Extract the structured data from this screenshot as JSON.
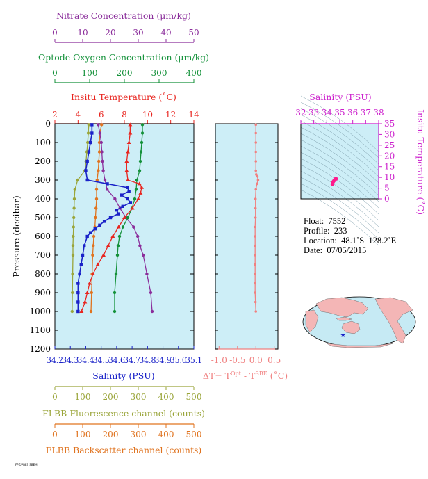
{
  "colors": {
    "nitrate": "#8b2e9b",
    "oxygen": "#14913a",
    "temperature": "#e8251f",
    "salinity": "#1a22c8",
    "fluorescence": "#9aa53a",
    "backscatter": "#e0731f",
    "dT": "#f08080",
    "panel_bg": "#cdeef7",
    "ts_axis": "#cc1fcc",
    "ts_point": "#ff1a8c"
  },
  "chart_data": [
    {
      "type": "line",
      "id": "profiles",
      "ylabel": "Pressure (decibar)",
      "ylim": [
        1200,
        0
      ],
      "yticks": [
        0,
        100,
        200,
        300,
        400,
        500,
        600,
        700,
        800,
        900,
        1000,
        1100,
        1200
      ],
      "axes": {
        "nitrate": {
          "label": "Nitrate Concentration (μm/kg)",
          "lim": [
            0,
            50
          ],
          "ticks": [
            0,
            10,
            20,
            30,
            40,
            50
          ]
        },
        "oxygen": {
          "label": "Optode Oxygen Concentration (μm/kg)",
          "lim": [
            0,
            400
          ],
          "ticks": [
            0,
            100,
            200,
            300,
            400
          ]
        },
        "temperature": {
          "label": "Insitu Temperature (˚C)",
          "lim": [
            2,
            14
          ],
          "ticks": [
            2,
            4,
            6,
            8,
            10,
            12,
            14
          ]
        },
        "salinity": {
          "label": "Salinity (PSU)",
          "lim": [
            34.2,
            35.1
          ],
          "ticks": [
            "34.2",
            "34.3",
            "34.4",
            "34.5",
            "34.6",
            "34.7",
            "34.8",
            "34.9",
            "35.0",
            "35.1"
          ]
        },
        "fluorescence": {
          "label": "FLBB Fluorescence channel (counts)",
          "lim": [
            0,
            500
          ],
          "ticks": [
            0,
            100,
            200,
            300,
            400,
            500
          ]
        },
        "backscatter": {
          "label": "FLBB Backscatter channel (counts)",
          "lim": [
            0,
            500
          ],
          "ticks": [
            0,
            100,
            200,
            300,
            400,
            500
          ]
        }
      },
      "series": [
        {
          "key": "nitrate",
          "axis": "nitrate",
          "marker": "circle",
          "p": [
            5,
            50,
            100,
            150,
            200,
            250,
            300,
            350,
            400,
            450,
            500,
            550,
            600,
            650,
            700,
            800,
            900,
            1000
          ],
          "v": [
            15.6,
            16.2,
            16.7,
            16.9,
            17.1,
            17.4,
            18.0,
            18.8,
            21.6,
            23.4,
            25.6,
            28.3,
            29.8,
            30.6,
            31.8,
            33.1,
            34.5,
            35.0
          ]
        },
        {
          "key": "oxygen",
          "axis": "oxygen",
          "marker": "circle",
          "p": [
            5,
            50,
            100,
            150,
            200,
            250,
            300,
            350,
            400,
            450,
            500,
            550,
            600,
            650,
            700,
            800,
            900,
            1000
          ],
          "v": [
            252,
            252,
            250,
            248,
            246,
            244,
            236,
            234,
            230,
            222,
            210,
            196,
            186,
            182,
            180,
            176,
            172,
            172
          ]
        },
        {
          "key": "temperature",
          "axis": "temperature",
          "marker": "triangle",
          "p": [
            5,
            50,
            100,
            150,
            200,
            250,
            300,
            320,
            340,
            370,
            400,
            450,
            500,
            550,
            600,
            650,
            700,
            750,
            800,
            850,
            900,
            950,
            1000
          ],
          "v": [
            8.5,
            8.5,
            8.4,
            8.3,
            8.2,
            8.2,
            8.3,
            9.3,
            9.5,
            9.4,
            9.2,
            8.7,
            8.0,
            7.5,
            7.0,
            6.6,
            6.2,
            5.7,
            5.3,
            5.0,
            4.8,
            4.6,
            4.3
          ]
        },
        {
          "key": "salinity",
          "axis": "salinity",
          "marker": "square",
          "p": [
            5,
            50,
            100,
            150,
            200,
            250,
            300,
            320,
            340,
            360,
            380,
            400,
            420,
            440,
            460,
            480,
            500,
            520,
            540,
            560,
            580,
            600,
            650,
            700,
            750,
            800,
            850,
            900,
            950,
            1000
          ],
          "v": [
            34.44,
            34.44,
            34.43,
            34.42,
            34.41,
            34.4,
            34.41,
            34.54,
            34.67,
            34.68,
            34.63,
            34.67,
            34.69,
            34.64,
            34.6,
            34.61,
            34.56,
            34.52,
            34.49,
            34.46,
            34.43,
            34.41,
            34.39,
            34.38,
            34.37,
            34.36,
            34.35,
            34.35,
            34.35,
            34.35
          ]
        },
        {
          "key": "fluorescence",
          "axis": "fluorescence",
          "marker": "circle",
          "p": [
            5,
            50,
            100,
            150,
            200,
            250,
            300,
            350,
            400,
            450,
            500,
            550,
            600,
            650,
            700,
            800,
            900,
            1000
          ],
          "v": [
            122,
            120,
            118,
            115,
            112,
            108,
            82,
            72,
            70,
            69,
            68,
            67,
            66,
            65,
            65,
            64,
            63,
            62
          ]
        },
        {
          "key": "backscatter",
          "axis": "backscatter",
          "marker": "circle",
          "p": [
            5,
            50,
            100,
            150,
            200,
            250,
            300,
            350,
            400,
            450,
            500,
            550,
            600,
            650,
            700,
            800,
            900,
            1000
          ],
          "v": [
            168,
            162,
            160,
            160,
            158,
            156,
            152,
            150,
            150,
            148,
            146,
            144,
            140,
            138,
            136,
            134,
            132,
            130
          ]
        }
      ]
    },
    {
      "type": "line",
      "id": "dT",
      "xlabel": "ΔT= T",
      "xlabel_sup1": "Opt",
      "xlabel_mid": " - T",
      "xlabel_sup2": "SBE",
      "xlabel_end": " (˚C)",
      "xlim": [
        -1.1,
        0.6
      ],
      "xticks": [
        "-1.0",
        "-0.5",
        "0.0",
        "0.5"
      ],
      "ylim": [
        1200,
        0
      ],
      "series": [
        {
          "key": "dT",
          "p": [
            5,
            50,
            100,
            150,
            200,
            250,
            270,
            280,
            300,
            320,
            350,
            400,
            450,
            500,
            550,
            600,
            650,
            700,
            750,
            800,
            850,
            900,
            950,
            1000
          ],
          "v": [
            0.0,
            0.0,
            0.0,
            0.0,
            0.0,
            0.0,
            0.01,
            0.04,
            0.06,
            0.03,
            0.0,
            -0.01,
            -0.01,
            -0.01,
            -0.02,
            -0.02,
            -0.02,
            -0.02,
            -0.02,
            -0.02,
            -0.02,
            -0.02,
            -0.01,
            0.0
          ]
        }
      ]
    },
    {
      "type": "scatter",
      "id": "ts",
      "xlabel": "Salinity (PSU)",
      "ylabel": "Insitu Temperature (˚C)",
      "xlim": [
        32,
        38
      ],
      "ylim": [
        0,
        35
      ],
      "xticks": [
        "32",
        "33",
        "34",
        "35",
        "36",
        "37",
        "38"
      ],
      "yticks": [
        "0",
        "5",
        "10",
        "15",
        "20",
        "25",
        "30",
        "35"
      ],
      "points": {
        "s": [
          34.43,
          34.45,
          34.5,
          34.55,
          34.6,
          34.65,
          34.7,
          34.72
        ],
        "t": [
          6.8,
          7.4,
          8.0,
          8.4,
          8.8,
          9.2,
          9.5,
          9.3
        ]
      }
    }
  ],
  "info": {
    "float": "Float:  7552",
    "profile": "Profile:  233",
    "location": "Location:  48.1˚S  128.2˚E",
    "date": "Date:  07/05/2015"
  },
  "map": {
    "marker_lat": -48.1,
    "marker_lon": 128.2
  },
  "footnote": "FPZ/PBES SBEM"
}
